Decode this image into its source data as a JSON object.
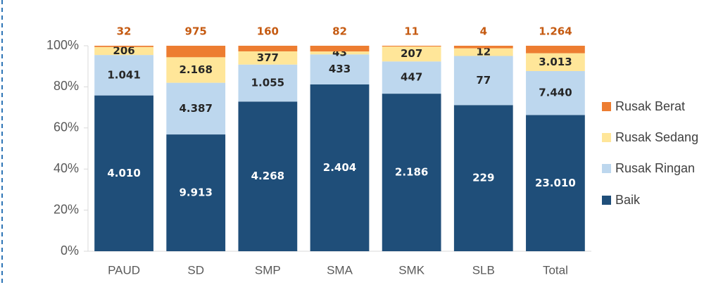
{
  "chart_data": {
    "type": "bar",
    "stack": "percent",
    "categories": [
      "PAUD",
      "SD",
      "SMP",
      "SMA",
      "SMK",
      "SLB",
      "Total"
    ],
    "series": [
      {
        "name": "Baik",
        "color": "#1f4e79",
        "values": [
          4010,
          9913,
          4268,
          2404,
          2186,
          229,
          23010
        ],
        "value_labels": [
          "4.010",
          "9.913",
          "4.268",
          "2.404",
          "2.186",
          "229",
          "23.010"
        ]
      },
      {
        "name": "Rusak Ringan",
        "color": "#bdd7ee",
        "values": [
          1041,
          4387,
          1055,
          433,
          447,
          77,
          7440
        ],
        "value_labels": [
          "1.041",
          "4.387",
          "1.055",
          "433",
          "447",
          "77",
          "7.440"
        ]
      },
      {
        "name": "Rusak Sedang",
        "color": "#ffe699",
        "values": [
          206,
          2168,
          377,
          43,
          207,
          12,
          3013
        ],
        "value_labels": [
          "206",
          "2.168",
          "377",
          "43",
          "207",
          "12",
          "3.013"
        ]
      },
      {
        "name": "Rusak Berat",
        "color": "#ed7d31",
        "values": [
          32,
          975,
          160,
          82,
          11,
          4,
          1264
        ],
        "value_labels": [
          "32",
          "975",
          "160",
          "82",
          "11",
          "4",
          "1.264"
        ]
      }
    ],
    "ylim": [
      0,
      100
    ],
    "yticks": [
      {
        "value": 0,
        "label": "0%"
      },
      {
        "value": 20,
        "label": "20%"
      },
      {
        "value": 40,
        "label": "40%"
      },
      {
        "value": 60,
        "label": "60%"
      },
      {
        "value": 80,
        "label": "80%"
      },
      {
        "value": 100,
        "label": "100%"
      }
    ],
    "legend": "right"
  }
}
